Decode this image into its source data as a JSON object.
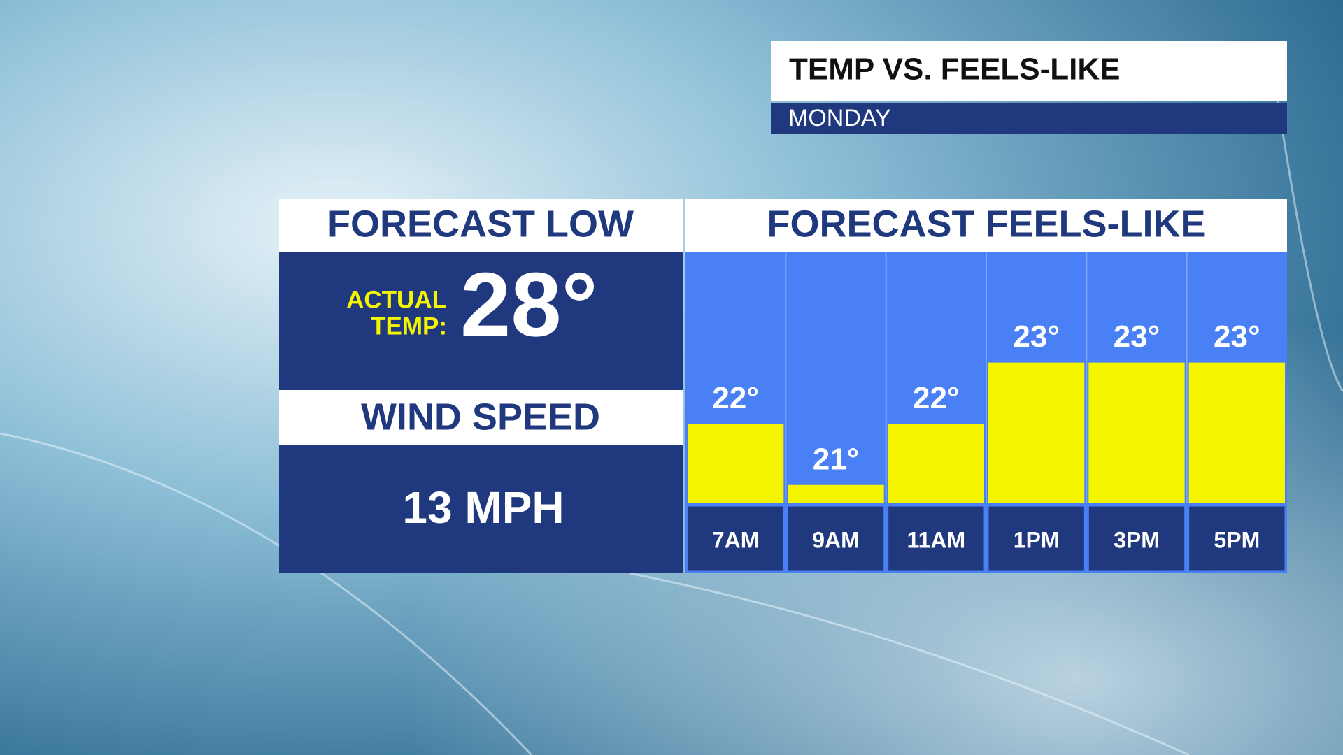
{
  "header": {
    "title": "TEMP VS. FEELS-LIKE",
    "subtitle": "MONDAY"
  },
  "forecast_low": {
    "heading": "FORECAST LOW",
    "actual_label_1": "ACTUAL",
    "actual_label_2": "TEMP:",
    "actual_temp": "28°",
    "wind_heading": "WIND SPEED",
    "wind_speed": "13 MPH"
  },
  "chart_data": {
    "type": "bar",
    "title": "FORECAST FEELS-LIKE",
    "categories": [
      "7AM",
      "9AM",
      "11AM",
      "1PM",
      "3PM",
      "5PM"
    ],
    "values": [
      22,
      21,
      22,
      23,
      23,
      23
    ],
    "value_labels": [
      "22°",
      "21°",
      "22°",
      "23°",
      "23°",
      "23°"
    ],
    "color": "#f5f500",
    "ylim": [
      20.7,
      24.8
    ]
  }
}
